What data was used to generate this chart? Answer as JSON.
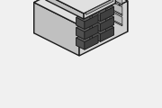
{
  "bg_color": "#f0f0f0",
  "line_color": "#1a1a1a",
  "fill_color": "#e8e8e8",
  "lw": 1.0,
  "lw_thin": 0.5,
  "figw": 1.8,
  "figh": 1.2,
  "dpi": 100,
  "fc_top": "#e0e0e0",
  "fc_front": "#d0d0d0",
  "fc_right": "#c0c0c0",
  "fc_cavity": "#404040",
  "fc_cside": "#505050",
  "fc_ctop": "#606060",
  "fc_cbot": "#484848",
  "fc_cback": "#383838",
  "fc_latch_notch": "#aaaaaa",
  "fc_rib": "#b8b8b8"
}
